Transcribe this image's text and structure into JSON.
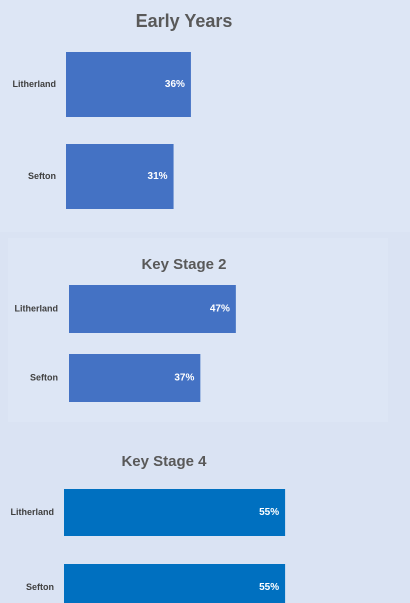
{
  "chart_data": [
    {
      "type": "bar",
      "title": "Early Years",
      "categories": [
        "Litherland",
        "Sefton"
      ],
      "values": [
        36,
        31
      ],
      "value_labels": [
        "36%",
        "31%"
      ],
      "color": "#4472c4"
    },
    {
      "type": "bar",
      "title": "Key Stage 2",
      "categories": [
        "Litherland",
        "Sefton"
      ],
      "values": [
        47,
        37
      ],
      "value_labels": [
        "47%",
        "37%"
      ],
      "color": "#4472c4"
    },
    {
      "type": "bar",
      "title": "Key Stage 4",
      "categories": [
        "Litherland",
        "Sefton"
      ],
      "values": [
        55,
        55
      ],
      "value_labels": [
        "55%",
        "55%"
      ],
      "color": "#0070c0"
    }
  ]
}
